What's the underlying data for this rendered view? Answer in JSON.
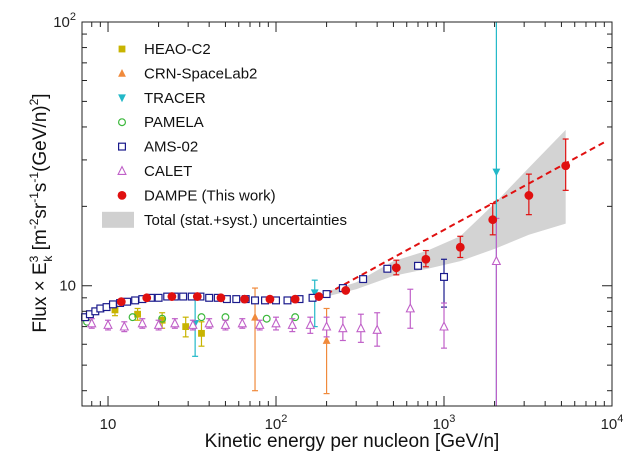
{
  "chart_data": {
    "type": "scatter",
    "xlabel": "Kinetic energy per nucleon [GeV/n]",
    "ylabel": "Flux × E_k^3 [m^-2 sr^-1 s^-1 (GeV/n)^2]",
    "ylabel_parts": {
      "pre": "Flux × E",
      "sub": "k",
      "sup1": "3",
      "mid": " [m",
      "sup2": "-2",
      "mid2": "sr",
      "sup3": "-1",
      "mid3": "s",
      "sup4": "-1",
      "mid4": "(GeV/n)",
      "sup5": "2",
      "end": "]"
    },
    "x_scale": "log",
    "y_scale": "log",
    "xlim": [
      7,
      10000
    ],
    "ylim": [
      3.5,
      100
    ],
    "x_ticks": [
      {
        "value": 10,
        "label": "10",
        "sup": ""
      },
      {
        "value": 100,
        "label": "10",
        "sup": "2"
      },
      {
        "value": 1000,
        "label": "10",
        "sup": "3"
      },
      {
        "value": 10000,
        "label": "10",
        "sup": "4"
      }
    ],
    "y_ticks": [
      {
        "value": 10,
        "label": "10",
        "sup": ""
      },
      {
        "value": 100,
        "label": "10",
        "sup": "2"
      }
    ],
    "legend": {
      "position": "top-left",
      "entries": [
        {
          "label": "HEAO-C2",
          "marker": "square-filled",
          "color": "#c8b400"
        },
        {
          "label": "CRN-SpaceLab2",
          "marker": "triangle-up-filled",
          "color": "#f08a3c"
        },
        {
          "label": "TRACER",
          "marker": "triangle-down-filled",
          "color": "#22b8c8"
        },
        {
          "label": "PAMELA",
          "marker": "circle-open",
          "color": "#3cb83c"
        },
        {
          "label": "AMS-02",
          "marker": "square-open",
          "color": "#1a1a8c"
        },
        {
          "label": "CALET",
          "marker": "triangle-up-open",
          "color": "#c060c8"
        },
        {
          "label": "DAMPE (This work)",
          "marker": "circle-filled",
          "color": "#e01010"
        },
        {
          "label": "Total (stat.+syst.) uncertainties",
          "marker": "band",
          "color": "#d0d0d0"
        }
      ]
    },
    "series": [
      {
        "name": "HEAO-C2",
        "marker": "square-filled",
        "color": "#c8b400",
        "points": [
          {
            "x": 11,
            "y": 8.1,
            "lo": 7.7,
            "hi": 8.5
          },
          {
            "x": 15,
            "y": 7.8,
            "lo": 7.4,
            "hi": 8.2
          },
          {
            "x": 21,
            "y": 7.4,
            "lo": 6.9,
            "hi": 7.9
          },
          {
            "x": 29,
            "y": 7.0,
            "lo": 6.4,
            "hi": 7.6
          },
          {
            "x": 36,
            "y": 6.6,
            "lo": 5.9,
            "hi": 7.3
          }
        ]
      },
      {
        "name": "CRN-SpaceLab2",
        "marker": "triangle-up-filled",
        "color": "#f08a3c",
        "points": [
          {
            "x": 75,
            "y": 7.6,
            "lo": 4.0,
            "hi": 9.8
          },
          {
            "x": 200,
            "y": 6.2,
            "lo": 3.9,
            "hi": 8.2
          }
        ]
      },
      {
        "name": "TRACER",
        "marker": "triangle-down-filled",
        "color": "#22b8c8",
        "points": [
          {
            "x": 33,
            "y": 7.2,
            "lo": 5.4,
            "hi": 9.0
          },
          {
            "x": 170,
            "y": 9.4,
            "lo": 7.0,
            "hi": 10.5
          },
          {
            "x": 2050,
            "y": 27.0,
            "lo": 3.5,
            "hi": 100
          }
        ]
      },
      {
        "name": "PAMELA",
        "marker": "circle-open",
        "color": "#3cb83c",
        "points": [
          {
            "x": 7.5,
            "y": 7.3
          },
          {
            "x": 14,
            "y": 7.6
          },
          {
            "x": 21,
            "y": 7.5
          },
          {
            "x": 36,
            "y": 7.6
          },
          {
            "x": 50,
            "y": 7.6
          },
          {
            "x": 88,
            "y": 7.5
          },
          {
            "x": 130,
            "y": 7.6
          }
        ]
      },
      {
        "name": "AMS-02",
        "marker": "square-open",
        "color": "#1a1a8c",
        "points": [
          {
            "x": 7.3,
            "y": 7.6
          },
          {
            "x": 7.8,
            "y": 7.8
          },
          {
            "x": 8.4,
            "y": 8.0
          },
          {
            "x": 9.0,
            "y": 8.2
          },
          {
            "x": 9.8,
            "y": 8.3
          },
          {
            "x": 10.7,
            "y": 8.5
          },
          {
            "x": 11.8,
            "y": 8.6
          },
          {
            "x": 13,
            "y": 8.7
          },
          {
            "x": 14.5,
            "y": 8.8
          },
          {
            "x": 16,
            "y": 8.9
          },
          {
            "x": 18,
            "y": 9.0
          },
          {
            "x": 20,
            "y": 9.0
          },
          {
            "x": 22.5,
            "y": 9.1
          },
          {
            "x": 25,
            "y": 9.1
          },
          {
            "x": 28,
            "y": 9.1
          },
          {
            "x": 31.5,
            "y": 9.1
          },
          {
            "x": 35.5,
            "y": 9.1
          },
          {
            "x": 40,
            "y": 9.0
          },
          {
            "x": 45,
            "y": 9.0
          },
          {
            "x": 51,
            "y": 8.9
          },
          {
            "x": 58,
            "y": 8.9
          },
          {
            "x": 66,
            "y": 8.9
          },
          {
            "x": 75,
            "y": 8.8
          },
          {
            "x": 86,
            "y": 8.8
          },
          {
            "x": 100,
            "y": 8.8
          },
          {
            "x": 117,
            "y": 8.8
          },
          {
            "x": 138,
            "y": 8.9
          },
          {
            "x": 165,
            "y": 9.0
          },
          {
            "x": 200,
            "y": 9.3
          },
          {
            "x": 250,
            "y": 9.8
          },
          {
            "x": 330,
            "y": 10.6
          },
          {
            "x": 460,
            "y": 11.6
          },
          {
            "x": 700,
            "y": 11.9
          },
          {
            "x": 1000,
            "y": 10.8,
            "lo": 8.3,
            "hi": 12.6
          }
        ]
      },
      {
        "name": "CALET",
        "marker": "triangle-up-open",
        "color": "#c060c8",
        "points": [
          {
            "x": 8,
            "y": 7.2,
            "lo": 6.9,
            "hi": 7.5
          },
          {
            "x": 10,
            "y": 7.1,
            "lo": 6.8,
            "hi": 7.4
          },
          {
            "x": 12.5,
            "y": 7.0,
            "lo": 6.7,
            "hi": 7.3
          },
          {
            "x": 16,
            "y": 7.2,
            "lo": 6.9,
            "hi": 7.5
          },
          {
            "x": 20,
            "y": 7.1,
            "lo": 6.8,
            "hi": 7.4
          },
          {
            "x": 25,
            "y": 7.2,
            "lo": 6.9,
            "hi": 7.5
          },
          {
            "x": 32,
            "y": 7.1,
            "lo": 6.8,
            "hi": 7.4
          },
          {
            "x": 40,
            "y": 7.2,
            "lo": 6.9,
            "hi": 7.5
          },
          {
            "x": 50,
            "y": 7.1,
            "lo": 6.8,
            "hi": 7.4
          },
          {
            "x": 63,
            "y": 7.2,
            "lo": 6.9,
            "hi": 7.5
          },
          {
            "x": 80,
            "y": 7.1,
            "lo": 6.8,
            "hi": 7.4
          },
          {
            "x": 100,
            "y": 7.2,
            "lo": 6.8,
            "hi": 7.6
          },
          {
            "x": 125,
            "y": 7.1,
            "lo": 6.7,
            "hi": 7.5
          },
          {
            "x": 160,
            "y": 7.1,
            "lo": 6.6,
            "hi": 7.6
          },
          {
            "x": 200,
            "y": 7.0,
            "lo": 6.4,
            "hi": 7.6
          },
          {
            "x": 250,
            "y": 6.9,
            "lo": 6.2,
            "hi": 7.6
          },
          {
            "x": 320,
            "y": 6.9,
            "lo": 6.1,
            "hi": 7.8
          },
          {
            "x": 400,
            "y": 6.8,
            "lo": 5.9,
            "hi": 7.9
          },
          {
            "x": 630,
            "y": 8.2,
            "lo": 6.9,
            "hi": 9.7
          },
          {
            "x": 1000,
            "y": 7.0,
            "lo": 5.8,
            "hi": 8.6
          },
          {
            "x": 2050,
            "y": 12.4,
            "lo": 3.5,
            "hi": 18
          }
        ]
      },
      {
        "name": "DAMPE (This work)",
        "marker": "circle-filled",
        "color": "#e01010",
        "points": [
          {
            "x": 12,
            "y": 8.7
          },
          {
            "x": 17,
            "y": 9.0
          },
          {
            "x": 24,
            "y": 9.1
          },
          {
            "x": 34,
            "y": 9.1
          },
          {
            "x": 47,
            "y": 9.0
          },
          {
            "x": 65,
            "y": 8.9
          },
          {
            "x": 92,
            "y": 8.9
          },
          {
            "x": 130,
            "y": 8.9
          },
          {
            "x": 180,
            "y": 9.1
          },
          {
            "x": 260,
            "y": 9.6
          },
          {
            "x": 520,
            "y": 11.7,
            "lo": 11.0,
            "hi": 12.5
          },
          {
            "x": 780,
            "y": 12.6,
            "lo": 11.8,
            "hi": 13.6
          },
          {
            "x": 1250,
            "y": 14.0,
            "lo": 12.8,
            "hi": 15.4
          },
          {
            "x": 1950,
            "y": 17.8,
            "lo": 15.6,
            "hi": 20.5
          },
          {
            "x": 3200,
            "y": 22.0,
            "lo": 18.6,
            "hi": 26.5
          },
          {
            "x": 5300,
            "y": 28.5,
            "lo": 23.0,
            "hi": 36.0
          }
        ]
      }
    ],
    "band": {
      "x": [
        200,
        300,
        500,
        800,
        1250,
        2000,
        3200,
        5300
      ],
      "lower": [
        9.1,
        9.7,
        10.9,
        11.6,
        12.4,
        13.8,
        15.6,
        17.2
      ],
      "upper": [
        9.5,
        10.3,
        12.4,
        13.6,
        15.4,
        20.5,
        28.0,
        39.0
      ]
    },
    "fit_line": {
      "style": "dashed",
      "color": "#e01010",
      "x": [
        200,
        9000
      ],
      "y": [
        9.3,
        35.0
      ]
    }
  }
}
